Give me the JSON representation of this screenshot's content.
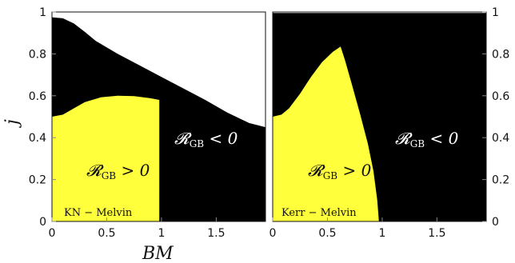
{
  "chart_data": [
    {
      "type": "area",
      "panel": "left",
      "tag": "KN − Melvin",
      "xlim": [
        0,
        1.95
      ],
      "ylim": [
        0,
        1
      ],
      "xticks": [
        "0",
        "0.5",
        "1",
        "1.5"
      ],
      "xtick_values": [
        0,
        0.5,
        1,
        1.5
      ],
      "yticks": [
        "0",
        "0.2",
        "0.4",
        "0.6",
        "0.8",
        "1"
      ],
      "ytick_values": [
        0,
        0.2,
        0.4,
        0.6,
        0.8,
        1
      ],
      "ylabel": "j",
      "colors": {
        "negative": "#000000",
        "positive": "#ffff3c",
        "background": "#ffffff"
      },
      "negative_region": {
        "label": "𝓡",
        "label_sub": "GB",
        "label_rel": " < 0",
        "upper_boundary": [
          [
            0,
            0.975
          ],
          [
            0.1,
            0.97
          ],
          [
            0.2,
            0.945
          ],
          [
            0.3,
            0.905
          ],
          [
            0.4,
            0.862
          ],
          [
            0.6,
            0.8
          ],
          [
            0.8,
            0.745
          ],
          [
            1.0,
            0.69
          ],
          [
            1.2,
            0.635
          ],
          [
            1.4,
            0.58
          ],
          [
            1.6,
            0.52
          ],
          [
            1.8,
            0.47
          ],
          [
            1.95,
            0.45
          ]
        ]
      },
      "positive_region": {
        "label": "𝓡",
        "label_sub": "GB",
        "label_rel": " > 0",
        "upper_boundary": [
          [
            0,
            0.5
          ],
          [
            0.1,
            0.51
          ],
          [
            0.2,
            0.54
          ],
          [
            0.3,
            0.57
          ],
          [
            0.45,
            0.593
          ],
          [
            0.6,
            0.6
          ],
          [
            0.75,
            0.598
          ],
          [
            0.9,
            0.588
          ],
          [
            0.98,
            0.58
          ]
        ],
        "right_x": 0.98
      }
    },
    {
      "type": "area",
      "panel": "right",
      "tag": "Kerr − Melvin",
      "xlim": [
        0,
        1.95
      ],
      "ylim": [
        0,
        1
      ],
      "xticks": [
        "0",
        "0.5",
        "1",
        "1.5"
      ],
      "xtick_values": [
        0,
        0.5,
        1,
        1.5
      ],
      "yticks": [
        "0",
        "0.2",
        "0.4",
        "0.6",
        "0.8",
        "1"
      ],
      "ytick_values": [
        0,
        0.2,
        0.4,
        0.6,
        0.8,
        1
      ],
      "colors": {
        "negative": "#000000",
        "positive": "#ffff3c",
        "background": "#ffffff"
      },
      "negative_region": {
        "label": "𝓡",
        "label_sub": "GB",
        "label_rel": " < 0",
        "upper_boundary": [
          [
            0,
            0.995
          ],
          [
            1.95,
            0.995
          ]
        ]
      },
      "positive_region": {
        "label": "𝓡",
        "label_sub": "GB",
        "label_rel": " > 0",
        "boundary": [
          [
            0,
            0.5
          ],
          [
            0.08,
            0.51
          ],
          [
            0.15,
            0.54
          ],
          [
            0.25,
            0.61
          ],
          [
            0.35,
            0.69
          ],
          [
            0.45,
            0.76
          ],
          [
            0.55,
            0.81
          ],
          [
            0.62,
            0.835
          ],
          [
            0.66,
            0.77
          ],
          [
            0.72,
            0.66
          ],
          [
            0.8,
            0.51
          ],
          [
            0.87,
            0.37
          ],
          [
            0.92,
            0.24
          ],
          [
            0.955,
            0.1
          ],
          [
            0.97,
            0.0
          ]
        ]
      }
    }
  ],
  "xlabel": "BM"
}
